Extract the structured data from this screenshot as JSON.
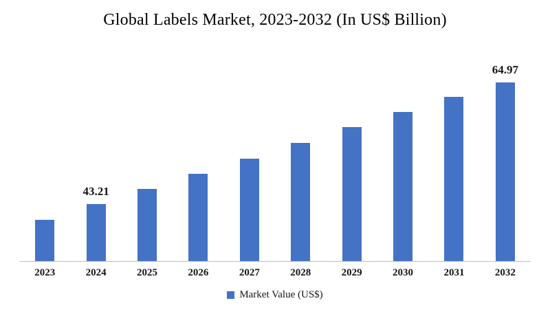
{
  "chart_style": {
    "bar_color": "#4472C4",
    "axis_line_color": "#bfbfbf"
  },
  "chart_data": {
    "type": "bar",
    "title": "Global Labels Market, 2023-2032 (In US$ Billion)",
    "series_name": "Market Value (US$)",
    "categories": [
      "2023",
      "2024",
      "2025",
      "2026",
      "2027",
      "2028",
      "2029",
      "2030",
      "2031",
      "2032"
    ],
    "values": [
      40.4,
      43.21,
      45.9,
      48.6,
      51.4,
      54.2,
      57.0,
      59.7,
      62.4,
      64.97
    ],
    "value_labels": [
      "",
      "43.21",
      "",
      "",
      "",
      "",
      "",
      "",
      "",
      "64.97"
    ],
    "xlabel": "",
    "ylabel": "",
    "ylim": [
      33,
      66
    ],
    "y_axis_visible": false,
    "grid": false,
    "legend_position": "bottom"
  }
}
